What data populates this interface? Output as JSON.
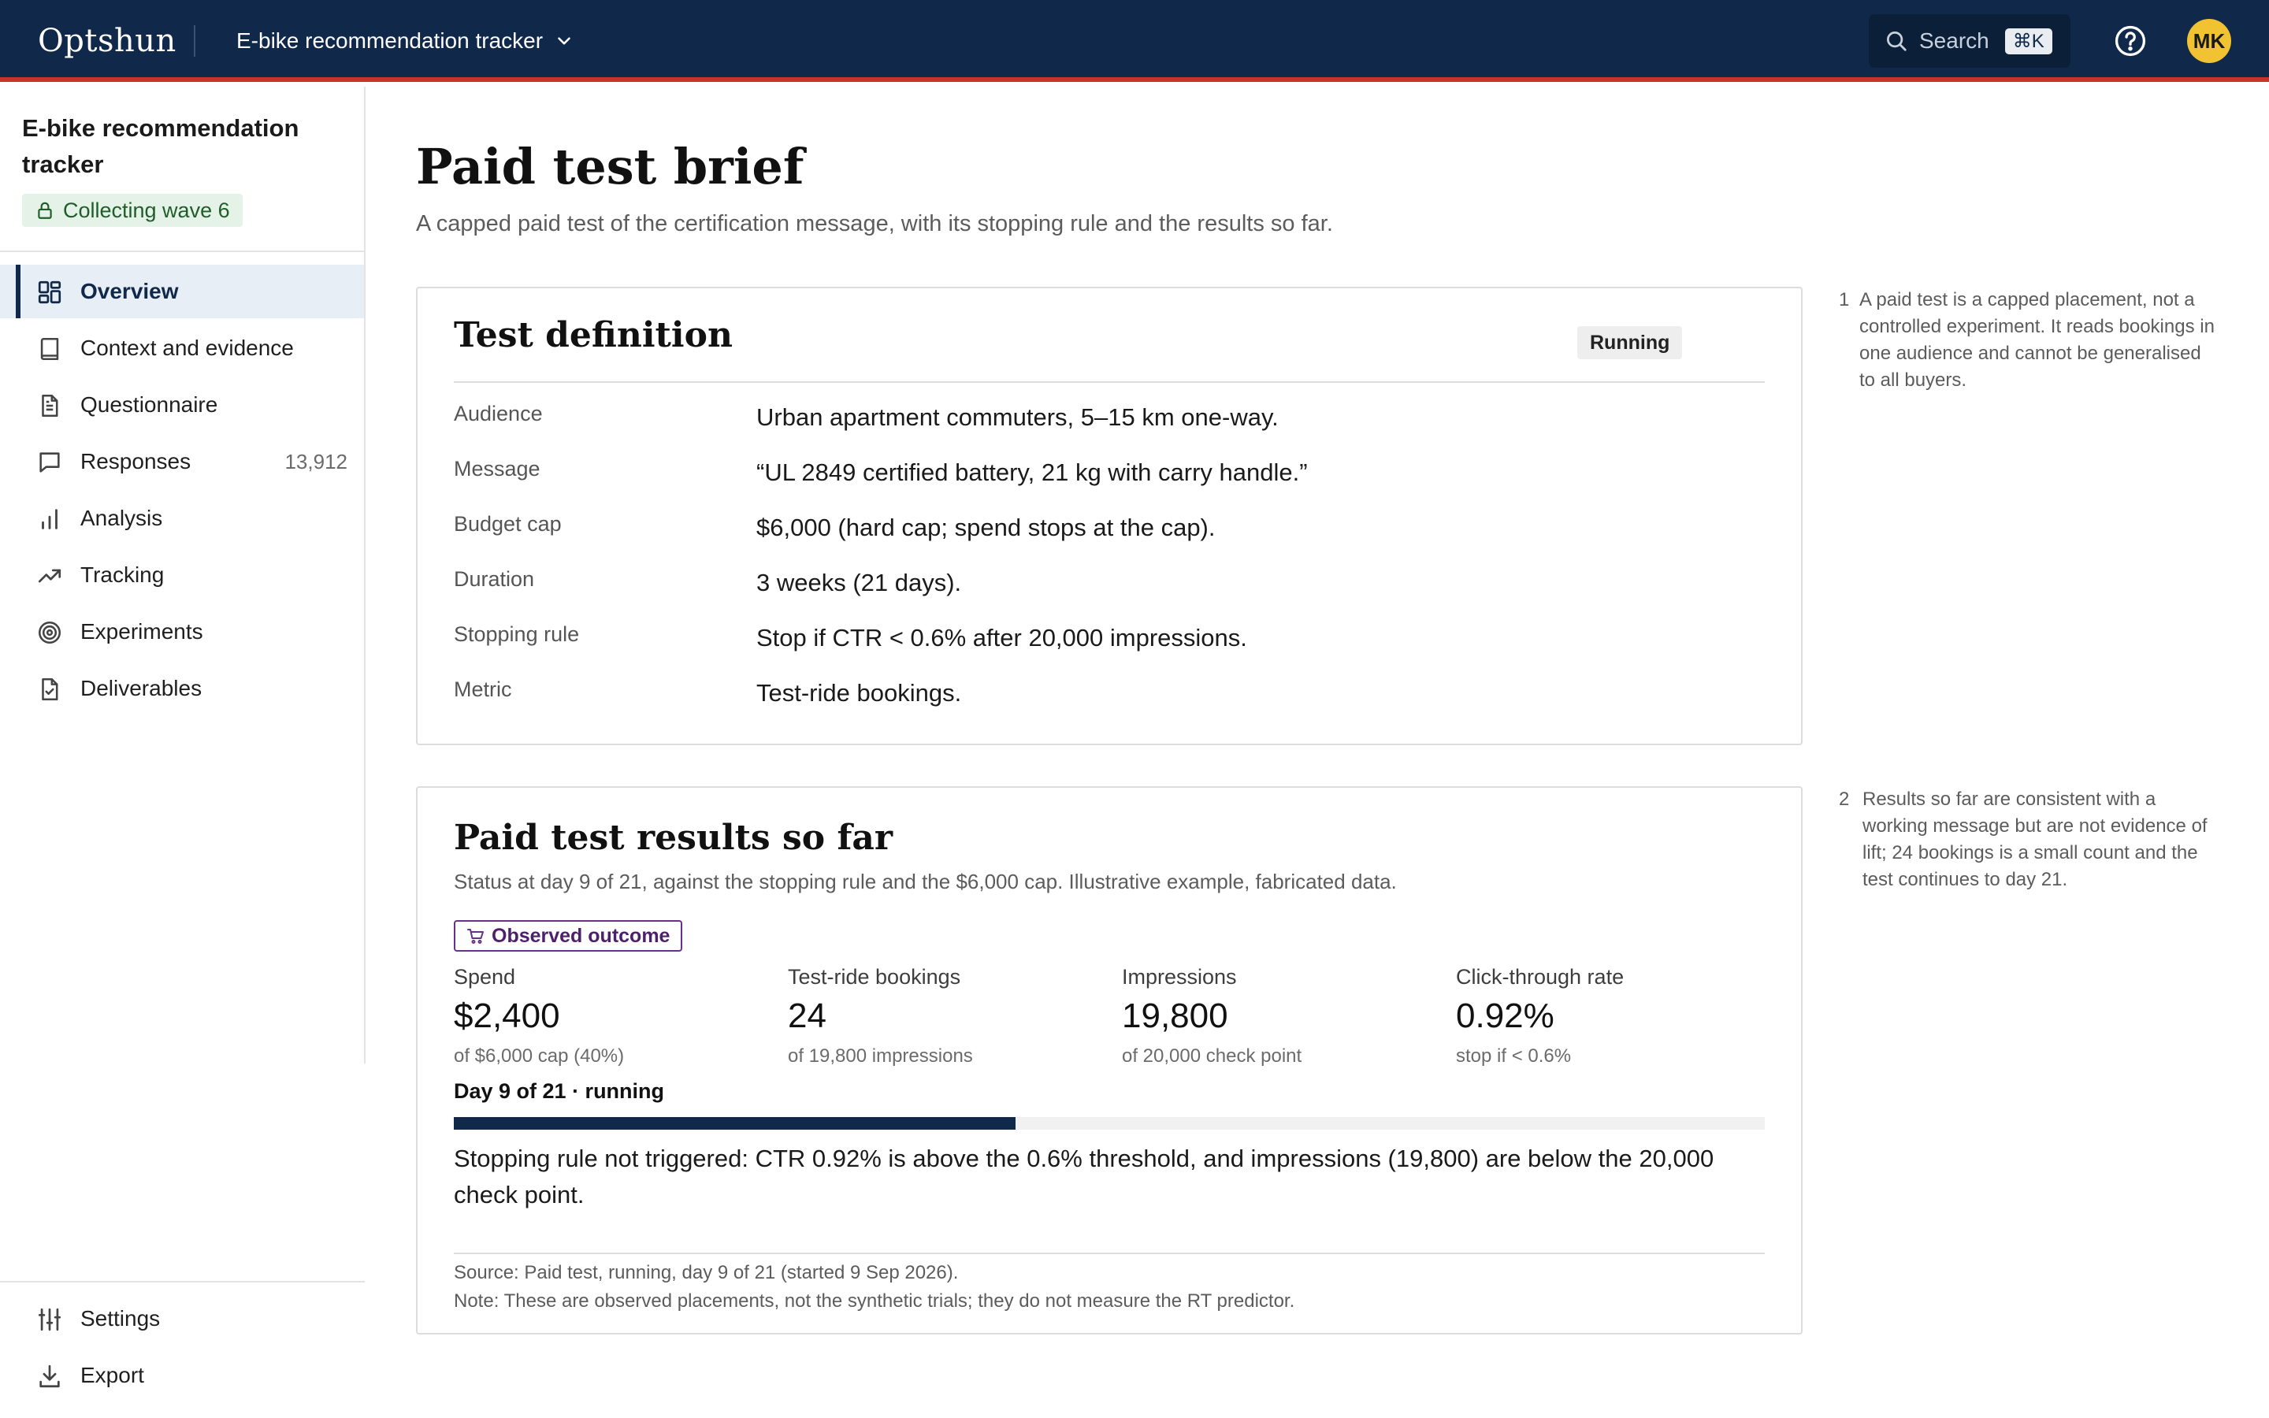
{
  "app": {
    "logo": "Optshun",
    "project_switcher": "E-bike recommendation tracker",
    "search_label": "Search",
    "search_shortcut": "⌘K",
    "user_initials": "MK"
  },
  "sidebar": {
    "project_title": "E-bike recommendation tracker",
    "status_badge": "Collecting wave 6",
    "items": [
      {
        "label": "Overview",
        "icon": "dashboard-grid-icon",
        "active": true
      },
      {
        "label": "Context and evidence",
        "icon": "book-icon"
      },
      {
        "label": "Questionnaire",
        "icon": "document-icon"
      },
      {
        "label": "Responses",
        "icon": "chat-bubble-icon",
        "count": "13,912"
      },
      {
        "label": "Analysis",
        "icon": "bar-chart-icon"
      },
      {
        "label": "Tracking",
        "icon": "trend-up-icon"
      },
      {
        "label": "Experiments",
        "icon": "target-icon"
      },
      {
        "label": "Deliverables",
        "icon": "file-check-icon"
      }
    ],
    "bottom_items": [
      {
        "label": "Settings",
        "icon": "sliders-icon"
      },
      {
        "label": "Export",
        "icon": "download-icon"
      }
    ]
  },
  "page": {
    "title": "Paid test brief",
    "subtitle": "A capped paid test of the certification message, with its stopping rule and the results so far."
  },
  "definition": {
    "title": "Test definition",
    "status": "Running",
    "rows": [
      {
        "label": "Audience",
        "value": "Urban apartment commuters, 5–15 km one-way."
      },
      {
        "label": "Message",
        "value": "“UL 2849 certified battery, 21 kg with carry handle.”"
      },
      {
        "label": "Budget cap",
        "value": "$6,000 (hard cap; spend stops at the cap)."
      },
      {
        "label": "Duration",
        "value": "3 weeks (21 days)."
      },
      {
        "label": "Stopping rule",
        "value": "Stop if CTR < 0.6% after 20,000 impressions."
      },
      {
        "label": "Metric",
        "value": "Test-ride bookings."
      }
    ]
  },
  "results": {
    "title": "Paid test results so far",
    "subtitle": "Status at day 9 of 21, against the stopping rule and the $6,000 cap. Illustrative example, fabricated data.",
    "badge": "Observed outcome",
    "metrics": [
      {
        "label": "Spend",
        "value": "$2,400",
        "note": "of $6,000 cap (40%)"
      },
      {
        "label": "Test-ride bookings",
        "value": "24",
        "note": "of 19,800 impressions"
      },
      {
        "label": "Impressions",
        "value": "19,800",
        "note": "of 20,000 check point"
      },
      {
        "label": "Click-through rate",
        "value": "0.92%",
        "note": "stop if < 0.6%"
      }
    ],
    "progress_label": "Day 9 of 21 · running",
    "progress_fraction": 0.4286,
    "stop_note": "Stopping rule not triggered: CTR 0.92% is above the 0.6% threshold, and impressions (19,800) are below the 20,000 check point.",
    "source": "Source: Paid test, running, day 9 of 21 (started 9 Sep 2026).",
    "note": "Note: These are observed placements, not the synthetic trials; they do not measure the RT predictor."
  },
  "margin_notes": [
    {
      "num": "1",
      "text": "A paid test is a capped placement, not a controlled experiment. It reads bookings in one audience and cannot be generalised to all buyers."
    },
    {
      "num": "2",
      "text": "Results so far are consistent with a working message but are not evidence of lift; 24 bookings is a small count and the test continues to day 21."
    }
  ],
  "colors": {
    "navy": "#10294a",
    "accent_red": "#c8322b",
    "badge_green_bg": "#e5f2e7",
    "observed_purple": "#6b2f8c",
    "avatar_yellow": "#f1c232"
  }
}
